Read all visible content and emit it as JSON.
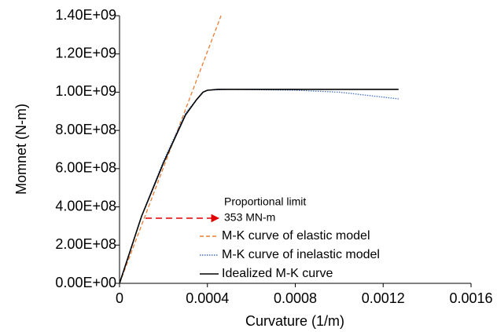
{
  "chart_data": {
    "type": "line",
    "x_label": "Curvature (1/m)",
    "y_label": "Momnet  (N-m)",
    "xlim": [
      0,
      0.0016
    ],
    "xticks": [
      0,
      0.0004,
      0.0008,
      0.0012,
      0.0016
    ],
    "ylim": [
      0,
      1400000000
    ],
    "yticks": [
      {
        "value": 0,
        "label": "0.00E+00"
      },
      {
        "value": 200000000,
        "label": "2.00E+08"
      },
      {
        "value": 400000000,
        "label": "4.00E+08"
      },
      {
        "value": 600000000,
        "label": "6.00E+08"
      },
      {
        "value": 800000000,
        "label": "8.00E+08"
      },
      {
        "value": 1000000000,
        "label": "1.00E+09"
      },
      {
        "value": 1200000000,
        "label": "1.20E+09"
      },
      {
        "value": 1400000000,
        "label": "1.40E+09"
      }
    ],
    "grid": false,
    "legend": "lower right",
    "annotations": [
      "Proportional limit",
      "353 MN-m"
    ],
    "series": [
      {
        "name": "M-K curve of elastic model",
        "color": "#ed7d31",
        "style": "dashed",
        "x": [
          0,
          0.000462
        ],
        "values": [
          0,
          1400000000
        ]
      },
      {
        "name": "M-K curve of inelastic model",
        "color": "#4472c4",
        "style": "dotted",
        "x": [
          0,
          0.0001,
          0.0002,
          0.0003,
          0.00035,
          0.00038,
          0.0004,
          0.0005,
          0.0008,
          0.001,
          0.00127
        ],
        "values": [
          0,
          350000000,
          640000000,
          890000000,
          960000000,
          1000000000,
          1010000000,
          1015000000,
          1010000000,
          1000000000,
          965000000
        ]
      },
      {
        "name": "Idealized M-K curve",
        "color": "#000000",
        "style": "solid",
        "x": [
          0,
          0.0001,
          0.0002,
          0.0003,
          0.00035,
          0.00038,
          0.0004,
          0.00045,
          0.00127
        ],
        "values": [
          0,
          350000000,
          630000000,
          880000000,
          960000000,
          1000000000,
          1010000000,
          1015000000,
          1015000000
        ]
      }
    ]
  }
}
